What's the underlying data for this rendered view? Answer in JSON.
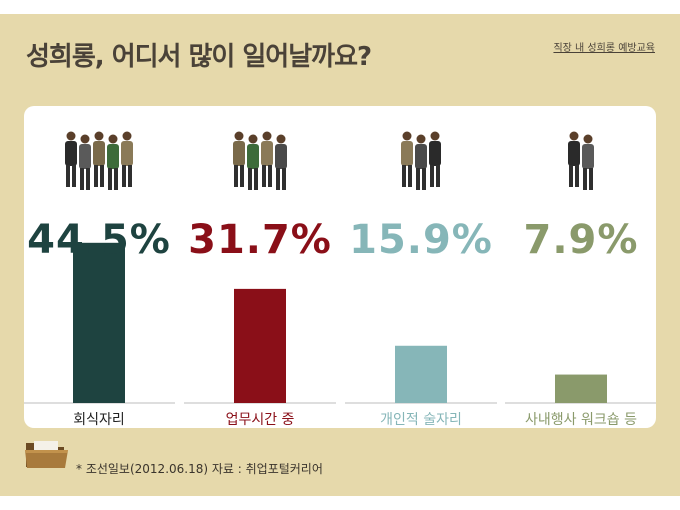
{
  "header": {
    "title": "성희롱, 어디서 많이 일어날까요?",
    "subtitle": "직장 내 성희롱 예방교육"
  },
  "footer": {
    "source": "* 조선일보(2012.06.18) 자료 : 취업포털커리어"
  },
  "chart_data": {
    "type": "bar",
    "title": "성희롱, 어디서 많이 일어날까요?",
    "categories": [
      "회식자리",
      "업무시간 중",
      "개인적 술자리",
      "사내행사 워크숍 등"
    ],
    "values": [
      44.5,
      31.7,
      15.9,
      7.9
    ],
    "value_labels": [
      "44.5%",
      "31.7%",
      "15.9%",
      "7.9%"
    ],
    "colors": [
      "#1e4340",
      "#8a0f18",
      "#86b6b8",
      "#8a9a6b"
    ],
    "people_icon_counts": [
      5,
      4,
      3,
      2
    ],
    "xlabel": "",
    "ylabel": "",
    "ylim": [
      0,
      50
    ],
    "grid": false,
    "legend": "none"
  }
}
